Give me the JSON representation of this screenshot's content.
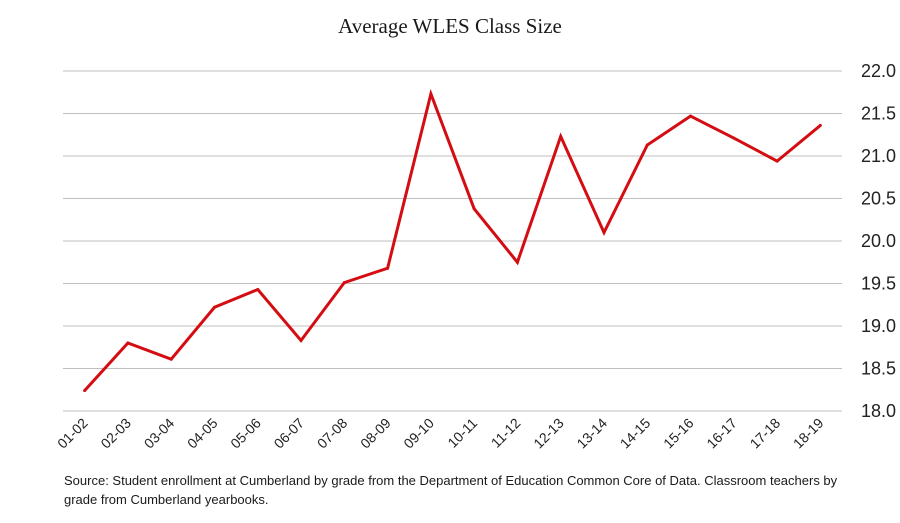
{
  "chart_data": {
    "type": "line",
    "title": "Average WLES Class Size",
    "xlabel": "",
    "ylabel": "",
    "categories": [
      "01-02",
      "02-03",
      "03-04",
      "04-05",
      "05-06",
      "06-07",
      "07-08",
      "08-09",
      "09-10",
      "10-11",
      "11-12",
      "12-13",
      "13-14",
      "14-15",
      "15-16",
      "16-17",
      "17-18",
      "18-19"
    ],
    "series": [
      {
        "name": "Average WLES Class Size",
        "color": "#d40d12",
        "values": [
          18.24,
          18.8,
          18.61,
          19.22,
          19.43,
          18.83,
          19.51,
          19.68,
          21.73,
          20.38,
          19.75,
          21.23,
          20.1,
          21.13,
          21.47,
          21.21,
          20.94,
          21.36
        ]
      }
    ],
    "ylim": [
      18.0,
      22.0
    ],
    "yticks": [
      "18.0",
      "18.5",
      "19.0",
      "19.5",
      "20.0",
      "20.5",
      "21.0",
      "21.5",
      "22.0"
    ],
    "grid": true,
    "y_axis_position": "right",
    "legend": "none"
  },
  "footnote": "Source: Student enrollment at Cumberland by grade from the Department of Education Common Core of Data. Classroom teachers by grade from Cumberland yearbooks."
}
